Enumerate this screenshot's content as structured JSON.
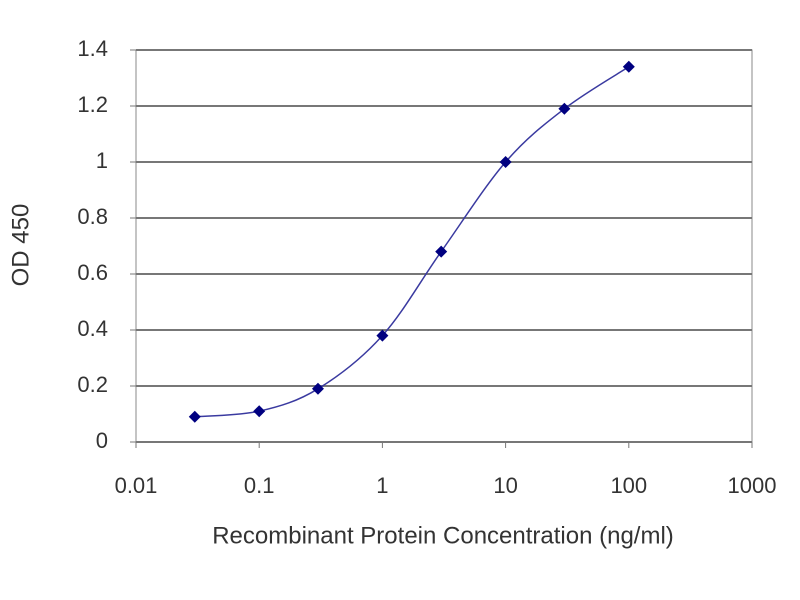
{
  "chart_data": {
    "type": "line",
    "xscale": "log",
    "x": [
      0.03,
      0.1,
      0.3,
      1,
      3,
      10,
      30,
      100
    ],
    "values": [
      0.09,
      0.11,
      0.19,
      0.38,
      0.68,
      1.0,
      1.19,
      1.34
    ],
    "color": "#3a3aa0",
    "marker_color": "#000080",
    "marker": "diamond",
    "smooth": true,
    "xlim": [
      0.01,
      1000
    ],
    "xticks": [
      0.01,
      0.1,
      1,
      10,
      100,
      1000
    ],
    "ylim": [
      0,
      1.4
    ],
    "yticks": [
      0,
      0.2,
      0.4,
      0.6,
      0.8,
      1,
      1.2,
      1.4
    ],
    "grid": true,
    "x_label": "Recombinant Protein Concentration (ng/ml)",
    "y_label": "OD 450"
  }
}
